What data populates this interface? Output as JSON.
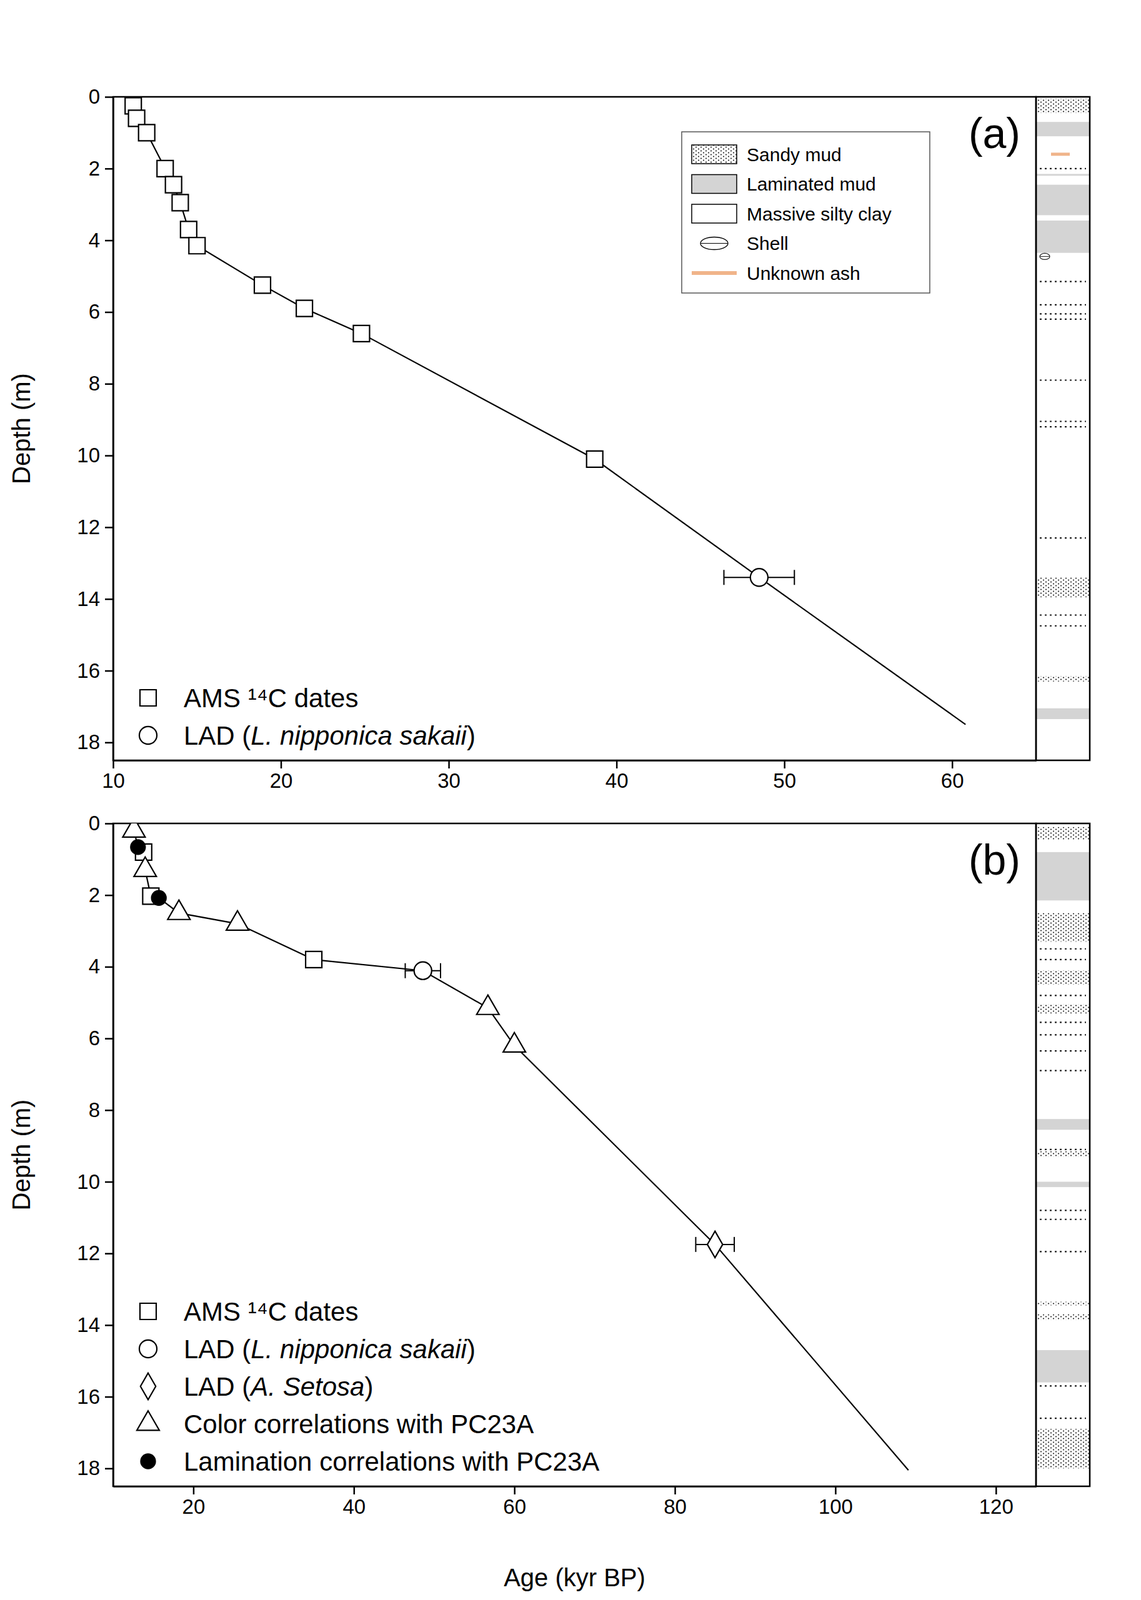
{
  "chart_data": [
    {
      "type": "scatter",
      "panel_label": "(a)",
      "y_label": "Depth (m)",
      "xlim": [
        10,
        65
      ],
      "ylim": [
        0,
        18.5
      ],
      "xticks": [
        10,
        20,
        30,
        40,
        50,
        60
      ],
      "yticks": [
        0,
        2,
        4,
        6,
        8,
        10,
        12,
        14,
        16,
        18
      ],
      "legend": "lower left",
      "series": [
        {
          "name": "AMS ¹⁴C dates",
          "marker": "square",
          "x": [
            11.2,
            11.4,
            12.0,
            13.1,
            13.6,
            14.0,
            14.5,
            15.0,
            18.9,
            21.4,
            24.8,
            38.7
          ],
          "values": [
            0.25,
            0.6,
            1.0,
            2.0,
            2.45,
            2.95,
            3.7,
            4.15,
            5.25,
            5.9,
            6.6,
            10.1
          ]
        },
        {
          "name": "LAD (L. nipponica sakaii)",
          "marker": "circle",
          "x": [
            48.5
          ],
          "values": [
            13.4
          ],
          "x_error": [
            2.1
          ]
        }
      ],
      "age_model": {
        "line_style": "solid",
        "x": [
          11.2,
          11.4,
          12.0,
          13.1,
          13.6,
          14.0,
          14.5,
          15.0,
          18.9,
          21.4,
          24.8,
          38.7,
          48.5,
          60.8
        ],
        "values": [
          0.25,
          0.6,
          1.0,
          2.0,
          2.45,
          2.95,
          3.7,
          4.15,
          5.25,
          5.9,
          6.6,
          10.1,
          13.4,
          17.5
        ]
      },
      "lithology": {
        "legend": [
          {
            "name": "Sandy mud",
            "marker": "dots"
          },
          {
            "name": "Laminated mud",
            "marker": "fill",
            "color": "#d4d4d4"
          },
          {
            "name": "Massive silty clay",
            "marker": "empty"
          },
          {
            "name": "Shell",
            "marker": "ellipse"
          },
          {
            "name": "Unknown ash",
            "marker": "line",
            "color": "#f0b48a"
          }
        ],
        "layers": [
          {
            "type": "Sandy mud",
            "top": 0.05,
            "bottom": 0.45
          },
          {
            "type": "Laminated mud",
            "top": 0.7,
            "bottom": 1.1
          },
          {
            "type": "Laminated mud",
            "top": 2.15,
            "bottom": 2.2
          },
          {
            "type": "Laminated mud",
            "top": 2.45,
            "bottom": 3.3
          },
          {
            "type": "Laminated mud",
            "top": 3.45,
            "bottom": 4.35
          },
          {
            "type": "Sandy mud",
            "top": 13.4,
            "bottom": 13.95
          },
          {
            "type": "Sandy mud",
            "top": 16.15,
            "bottom": 16.3
          },
          {
            "type": "Laminated mud",
            "top": 17.05,
            "bottom": 17.35
          }
        ],
        "streaks": [
          2.0,
          5.15,
          5.8,
          6.05,
          6.2,
          7.9,
          9.05,
          9.2,
          12.3,
          14.45,
          14.75
        ],
        "shells": [
          4.45
        ],
        "ash": [
          1.6
        ]
      }
    },
    {
      "type": "scatter",
      "panel_label": "(b)",
      "y_label": "Depth (m)",
      "x_label": "Age (kyr BP)",
      "xlim": [
        10,
        125
      ],
      "ylim": [
        0,
        18.5
      ],
      "xticks": [
        20,
        40,
        60,
        80,
        100,
        120
      ],
      "yticks": [
        0,
        2,
        4,
        6,
        8,
        10,
        12,
        14,
        16,
        18
      ],
      "legend": "lower left",
      "series": [
        {
          "name": "AMS ¹⁴C dates",
          "marker": "square",
          "x": [
            13.8,
            14.7,
            35.0
          ],
          "values": [
            0.8,
            2.03,
            3.8
          ]
        },
        {
          "name": "LAD (L. nipponica sakaii)",
          "marker": "circle",
          "x": [
            48.6
          ],
          "values": [
            4.11
          ],
          "x_error": [
            2.2
          ]
        },
        {
          "name": "LAD (A. Setosa)",
          "marker": "diamond",
          "x": [
            85.0
          ],
          "values": [
            11.75
          ],
          "x_error": [
            2.4
          ]
        },
        {
          "name": "Color correlations with PC23A",
          "marker": "triangle",
          "x": [
            12.6,
            14.0,
            18.2,
            25.5,
            56.7,
            60.0
          ],
          "values": [
            0.2,
            1.3,
            2.5,
            2.8,
            5.15,
            6.2
          ]
        },
        {
          "name": "Lamination correlations with PC23A",
          "marker": "filled-circle",
          "x": [
            13.1,
            15.7
          ],
          "values": [
            0.66,
            2.08
          ]
        }
      ],
      "age_model": {
        "line_style": "solid",
        "x": [
          12.6,
          13.1,
          13.8,
          14.0,
          14.7,
          15.7,
          18.2,
          25.5,
          35.0,
          48.6,
          56.7,
          60.0,
          85.0,
          109.1
        ],
        "values": [
          0.2,
          0.66,
          0.8,
          1.3,
          2.03,
          2.08,
          2.5,
          2.8,
          3.8,
          4.11,
          5.15,
          6.2,
          11.75,
          18.05
        ]
      },
      "lithology": {
        "layers": [
          {
            "type": "Sandy mud",
            "top": 0.1,
            "bottom": 0.45
          },
          {
            "type": "Laminated mud",
            "top": 0.8,
            "bottom": 2.15
          },
          {
            "type": "Sandy mud",
            "top": 2.5,
            "bottom": 3.3
          },
          {
            "type": "Sandy mud",
            "top": 4.1,
            "bottom": 4.5
          },
          {
            "type": "Sandy mud",
            "top": 5.05,
            "bottom": 5.3
          },
          {
            "type": "Laminated mud",
            "top": 8.25,
            "bottom": 8.55
          },
          {
            "type": "Sandy mud",
            "top": 9.15,
            "bottom": 9.3
          },
          {
            "type": "Laminated mud",
            "top": 10.0,
            "bottom": 10.15
          },
          {
            "type": "Sandy mud",
            "top": 13.35,
            "bottom": 13.45
          },
          {
            "type": "Sandy mud",
            "top": 13.7,
            "bottom": 13.85
          },
          {
            "type": "Laminated mud",
            "top": 14.7,
            "bottom": 15.6
          },
          {
            "type": "Sandy mud",
            "top": 16.9,
            "bottom": 18.0
          }
        ],
        "streaks": [
          3.5,
          3.8,
          4.8,
          5.55,
          5.9,
          6.35,
          6.9,
          9.1,
          10.8,
          11.05,
          11.95,
          15.7,
          16.6
        ]
      }
    }
  ]
}
